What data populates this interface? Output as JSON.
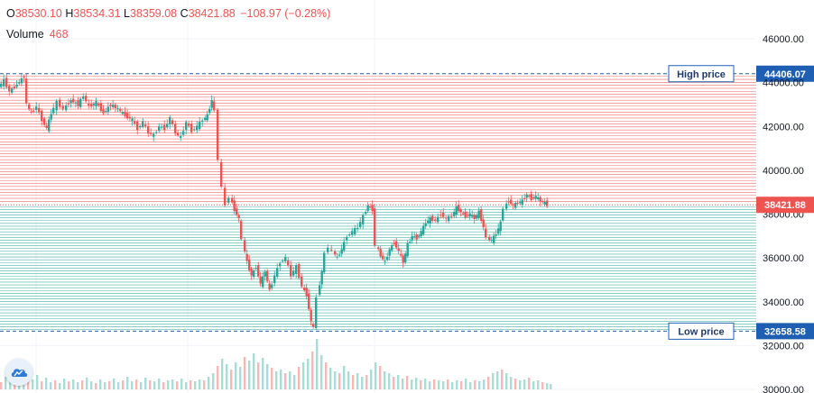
{
  "legend": {
    "open_label": "O",
    "open": "38530.10",
    "high_label": "H",
    "high": "38534.31",
    "low_label": "L",
    "low": "38359.08",
    "close_label": "C",
    "close": "38421.88",
    "change": "−108.97 (−0.28%)"
  },
  "volume": {
    "label": "Volume",
    "value": "468"
  },
  "colors": {
    "up": "#26a69a",
    "down": "#ef5350",
    "high_line": "#1e5fb3",
    "low_line": "#1e5fb3",
    "axis_text": "#131722"
  },
  "icons": {
    "logo": "tradingview-cloud-icon"
  },
  "chart_data": {
    "type": "candlestick",
    "y_axis": {
      "ticks": [
        "46000.00",
        "44000.00",
        "42000.00",
        "40000.00",
        "38000.00",
        "36000.00",
        "34000.00",
        "32000.00",
        "30000.00"
      ],
      "range": [
        29900,
        47600
      ],
      "position": "right"
    },
    "high_price": {
      "label": "High price",
      "value": 44406.07,
      "text": "44406.07"
    },
    "low_price": {
      "label": "Low price",
      "value": 32658.58,
      "text": "32658.58"
    },
    "last_price": {
      "value": 38421.88,
      "text": "38421.88"
    },
    "price_trace": [
      [
        0,
        43800
      ],
      [
        6,
        44100
      ],
      [
        12,
        43600
      ],
      [
        20,
        43900
      ],
      [
        28,
        44300
      ],
      [
        31,
        43000
      ],
      [
        36,
        42600
      ],
      [
        42,
        42900
      ],
      [
        48,
        42300
      ],
      [
        53,
        41900
      ],
      [
        58,
        42600
      ],
      [
        65,
        43100
      ],
      [
        72,
        42800
      ],
      [
        80,
        43200
      ],
      [
        88,
        43000
      ],
      [
        94,
        43400
      ],
      [
        100,
        42900
      ],
      [
        108,
        43100
      ],
      [
        116,
        42600
      ],
      [
        124,
        43000
      ],
      [
        132,
        42800
      ],
      [
        140,
        42500
      ],
      [
        148,
        42300
      ],
      [
        154,
        41900
      ],
      [
        160,
        42200
      ],
      [
        166,
        41700
      ],
      [
        172,
        41600
      ],
      [
        178,
        42000
      ],
      [
        184,
        41900
      ],
      [
        190,
        42400
      ],
      [
        196,
        41700
      ],
      [
        202,
        41500
      ],
      [
        208,
        42200
      ],
      [
        214,
        41800
      ],
      [
        220,
        42000
      ],
      [
        226,
        42300
      ],
      [
        231,
        42500
      ],
      [
        236,
        43200
      ],
      [
        240,
        42700
      ],
      [
        244,
        40500
      ],
      [
        248,
        39200
      ],
      [
        252,
        38400
      ],
      [
        256,
        38800
      ],
      [
        261,
        38200
      ],
      [
        266,
        37800
      ],
      [
        270,
        36800
      ],
      [
        275,
        35800
      ],
      [
        280,
        35200
      ],
      [
        285,
        35600
      ],
      [
        290,
        34800
      ],
      [
        295,
        35400
      ],
      [
        300,
        34500
      ],
      [
        306,
        35200
      ],
      [
        312,
        35800
      ],
      [
        318,
        36000
      ],
      [
        324,
        35200
      ],
      [
        330,
        35600
      ],
      [
        336,
        34700
      ],
      [
        341,
        34300
      ],
      [
        346,
        33100
      ],
      [
        349,
        32800
      ],
      [
        353,
        34200
      ],
      [
        358,
        35400
      ],
      [
        362,
        36200
      ],
      [
        366,
        36500
      ],
      [
        370,
        36300
      ],
      [
        375,
        36000
      ],
      [
        380,
        36400
      ],
      [
        386,
        37000
      ],
      [
        392,
        37200
      ],
      [
        398,
        37400
      ],
      [
        404,
        37900
      ],
      [
        409,
        38400
      ],
      [
        414,
        38200
      ],
      [
        418,
        36600
      ],
      [
        423,
        36100
      ],
      [
        428,
        35800
      ],
      [
        433,
        36400
      ],
      [
        438,
        36700
      ],
      [
        443,
        36300
      ],
      [
        448,
        35800
      ],
      [
        453,
        36600
      ],
      [
        458,
        37000
      ],
      [
        463,
        36900
      ],
      [
        468,
        37200
      ],
      [
        473,
        37600
      ],
      [
        478,
        37800
      ],
      [
        484,
        37700
      ],
      [
        490,
        38000
      ],
      [
        496,
        37800
      ],
      [
        502,
        37900
      ],
      [
        507,
        38300
      ],
      [
        512,
        38100
      ],
      [
        517,
        37900
      ],
      [
        522,
        38000
      ],
      [
        527,
        37800
      ],
      [
        532,
        38100
      ],
      [
        537,
        37400
      ],
      [
        541,
        36900
      ],
      [
        546,
        36800
      ],
      [
        551,
        37100
      ],
      [
        556,
        37600
      ],
      [
        560,
        38300
      ],
      [
        565,
        38600
      ],
      [
        570,
        38400
      ],
      [
        575,
        38500
      ],
      [
        580,
        38600
      ],
      [
        585,
        38900
      ],
      [
        590,
        38700
      ],
      [
        595,
        38800
      ],
      [
        600,
        38600
      ],
      [
        605,
        38500
      ],
      [
        609,
        38420
      ]
    ],
    "volume_trace": [
      [
        0,
        8
      ],
      [
        5,
        14
      ],
      [
        10,
        9
      ],
      [
        15,
        6
      ],
      [
        20,
        12
      ],
      [
        25,
        10
      ],
      [
        30,
        22
      ],
      [
        35,
        11
      ],
      [
        40,
        16
      ],
      [
        45,
        9
      ],
      [
        50,
        13
      ],
      [
        55,
        8
      ],
      [
        60,
        10
      ],
      [
        65,
        7
      ],
      [
        70,
        12
      ],
      [
        75,
        9
      ],
      [
        80,
        11
      ],
      [
        85,
        8
      ],
      [
        90,
        10
      ],
      [
        95,
        13
      ],
      [
        100,
        9
      ],
      [
        105,
        7
      ],
      [
        110,
        11
      ],
      [
        115,
        8
      ],
      [
        120,
        9
      ],
      [
        125,
        12
      ],
      [
        130,
        8
      ],
      [
        135,
        10
      ],
      [
        140,
        14
      ],
      [
        145,
        9
      ],
      [
        150,
        11
      ],
      [
        155,
        8
      ],
      [
        160,
        13
      ],
      [
        165,
        10
      ],
      [
        170,
        9
      ],
      [
        175,
        12
      ],
      [
        180,
        8
      ],
      [
        185,
        10
      ],
      [
        190,
        11
      ],
      [
        195,
        9
      ],
      [
        200,
        12
      ],
      [
        205,
        8
      ],
      [
        210,
        10
      ],
      [
        215,
        9
      ],
      [
        220,
        11
      ],
      [
        225,
        10
      ],
      [
        230,
        14
      ],
      [
        235,
        18
      ],
      [
        240,
        26
      ],
      [
        245,
        34
      ],
      [
        250,
        28
      ],
      [
        255,
        22
      ],
      [
        260,
        30
      ],
      [
        265,
        25
      ],
      [
        270,
        36
      ],
      [
        275,
        32
      ],
      [
        280,
        40
      ],
      [
        285,
        30
      ],
      [
        290,
        35
      ],
      [
        295,
        28
      ],
      [
        300,
        24
      ],
      [
        305,
        20
      ],
      [
        310,
        22
      ],
      [
        315,
        18
      ],
      [
        320,
        20
      ],
      [
        325,
        16
      ],
      [
        330,
        25
      ],
      [
        335,
        30
      ],
      [
        340,
        34
      ],
      [
        345,
        42
      ],
      [
        350,
        56
      ],
      [
        355,
        38
      ],
      [
        360,
        30
      ],
      [
        365,
        24
      ],
      [
        370,
        20
      ],
      [
        375,
        18
      ],
      [
        380,
        26
      ],
      [
        385,
        20
      ],
      [
        390,
        16
      ],
      [
        395,
        18
      ],
      [
        400,
        14
      ],
      [
        405,
        16
      ],
      [
        410,
        22
      ],
      [
        415,
        30
      ],
      [
        420,
        26
      ],
      [
        425,
        20
      ],
      [
        430,
        18
      ],
      [
        435,
        14
      ],
      [
        440,
        16
      ],
      [
        445,
        12
      ],
      [
        450,
        15
      ],
      [
        455,
        11
      ],
      [
        460,
        13
      ],
      [
        465,
        10
      ],
      [
        470,
        12
      ],
      [
        475,
        9
      ],
      [
        480,
        11
      ],
      [
        485,
        10
      ],
      [
        490,
        9
      ],
      [
        495,
        11
      ],
      [
        500,
        8
      ],
      [
        505,
        10
      ],
      [
        510,
        9
      ],
      [
        515,
        12
      ],
      [
        520,
        8
      ],
      [
        525,
        10
      ],
      [
        530,
        9
      ],
      [
        535,
        11
      ],
      [
        540,
        14
      ],
      [
        545,
        18
      ],
      [
        550,
        20
      ],
      [
        555,
        22
      ],
      [
        560,
        18
      ],
      [
        565,
        14
      ],
      [
        570,
        12
      ],
      [
        575,
        10
      ],
      [
        580,
        11
      ],
      [
        585,
        13
      ],
      [
        590,
        9
      ],
      [
        595,
        10
      ],
      [
        600,
        8
      ],
      [
        605,
        7
      ],
      [
        609,
        6
      ]
    ]
  }
}
